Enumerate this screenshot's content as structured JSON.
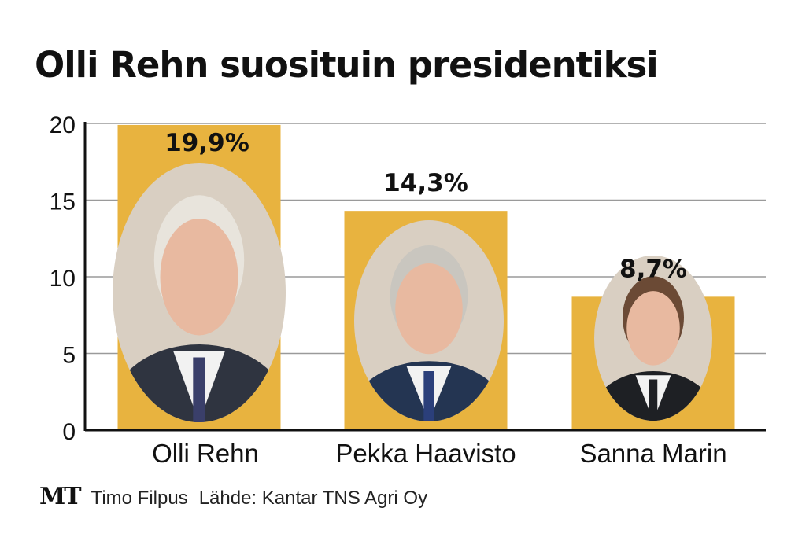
{
  "chart_data": {
    "type": "bar",
    "title": "Olli Rehn suosituin presidentiksi",
    "categories": [
      "Olli Rehn",
      "Pekka Haavisto",
      "Sanna Marin"
    ],
    "values": [
      19.9,
      14.3,
      8.7
    ],
    "data_labels": [
      "19,9%",
      "14,3%",
      "8,7%"
    ],
    "xlabel": "",
    "ylabel": "",
    "ylim": [
      0,
      20
    ],
    "yticks": [
      0,
      5,
      10,
      15,
      20
    ],
    "grid": true,
    "bar_color": "#E8B33F",
    "bar_images": "candidate portrait photos"
  },
  "footer": {
    "logo": "MT",
    "author": "Timo Filpus",
    "source": "Lähde: Kantar TNS Agri Oy"
  }
}
